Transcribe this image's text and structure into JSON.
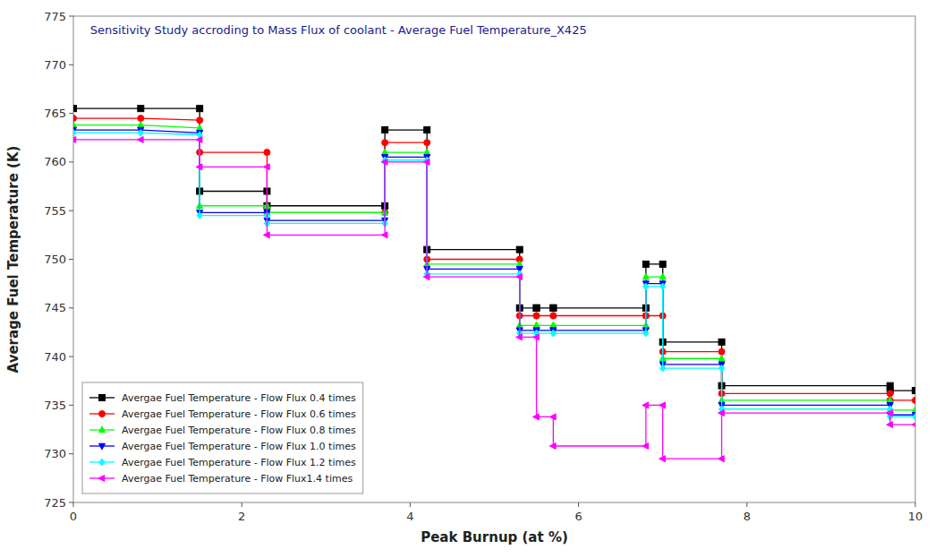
{
  "chart_data": {
    "type": "line",
    "title": "Sensitivity Study accroding to Mass Flux of coolant - Average Fuel Temperature_X425",
    "x_label": "Peak Burnup (at %)",
    "y_label": "Average Fuel Temperature (K)",
    "xlim": [
      0,
      10
    ],
    "ylim": [
      725,
      775
    ],
    "xticks": [
      0,
      2,
      4,
      6,
      8,
      10
    ],
    "yticks": [
      725,
      730,
      735,
      740,
      745,
      750,
      755,
      760,
      765,
      770,
      775
    ],
    "grid": false,
    "legend": "lower left",
    "x": [
      0.0,
      0.8,
      1.5,
      1.5,
      2.3,
      2.3,
      3.7,
      3.7,
      4.2,
      4.2,
      5.3,
      5.3,
      5.5,
      5.5,
      5.7,
      5.7,
      6.8,
      6.8,
      7.0,
      7.0,
      7.7,
      7.7,
      9.7,
      9.7,
      10.0
    ],
    "series": [
      {
        "name": "Avergae Fuel Temperature - Flow Flux 0.4 times",
        "color": "black",
        "marker": "square",
        "values": [
          765.5,
          765.5,
          765.5,
          757.0,
          757.0,
          755.5,
          755.5,
          763.3,
          763.3,
          751.0,
          751.0,
          745.0,
          745.0,
          745.0,
          745.0,
          745.0,
          745.0,
          749.5,
          749.5,
          741.5,
          741.5,
          737.0,
          737.0,
          736.5,
          736.5
        ]
      },
      {
        "name": "Avergae Fuel Temperature - Flow Flux 0.6 times",
        "color": "red",
        "marker": "circle",
        "values": [
          764.5,
          764.5,
          764.3,
          761.0,
          761.0,
          754.8,
          754.8,
          762.0,
          762.0,
          750.0,
          750.0,
          744.2,
          744.2,
          744.2,
          744.2,
          744.2,
          744.2,
          744.2,
          744.2,
          740.5,
          740.5,
          736.2,
          736.2,
          735.5,
          735.5
        ]
      },
      {
        "name": "Avergae Fuel Temperature - Flow Flux 0.8 times",
        "color": "lime",
        "marker": "triangle-up",
        "values": [
          763.8,
          763.8,
          763.5,
          755.5,
          755.5,
          754.8,
          754.8,
          761.0,
          761.0,
          749.5,
          749.5,
          743.2,
          743.2,
          743.2,
          743.2,
          743.2,
          743.2,
          748.2,
          748.2,
          739.8,
          739.8,
          735.5,
          735.5,
          734.5,
          734.5
        ]
      },
      {
        "name": "Avergae Fuel Temperature - Flow Flux 1.0 times",
        "color": "blue",
        "marker": "triangle-down",
        "values": [
          763.3,
          763.3,
          763.0,
          754.8,
          754.8,
          754.0,
          754.0,
          760.5,
          760.5,
          749.0,
          749.0,
          742.7,
          742.7,
          742.7,
          742.7,
          742.7,
          742.7,
          747.5,
          747.5,
          739.2,
          739.2,
          735.0,
          735.0,
          734.0,
          734.0
        ]
      },
      {
        "name": "Avergae Fuel Temperature - Flow Flux 1.2 times",
        "color": "cyan",
        "marker": "diamond",
        "values": [
          763.0,
          763.0,
          762.8,
          754.5,
          754.5,
          753.7,
          753.7,
          760.2,
          760.2,
          748.5,
          748.5,
          742.4,
          742.4,
          742.4,
          742.4,
          742.4,
          742.4,
          747.2,
          747.2,
          738.8,
          738.8,
          734.6,
          734.6,
          733.8,
          733.8
        ]
      },
      {
        "name": "Avergae Fuel Temperature - Flow Flux1.4 times",
        "color": "magenta",
        "marker": "triangle-left",
        "values": [
          762.3,
          762.3,
          762.3,
          759.5,
          759.5,
          752.5,
          752.5,
          760.0,
          760.0,
          748.2,
          748.2,
          742.0,
          742.0,
          733.8,
          733.8,
          730.8,
          730.8,
          735.0,
          735.0,
          729.5,
          729.5,
          734.2,
          734.2,
          733.0,
          733.0
        ]
      }
    ]
  }
}
